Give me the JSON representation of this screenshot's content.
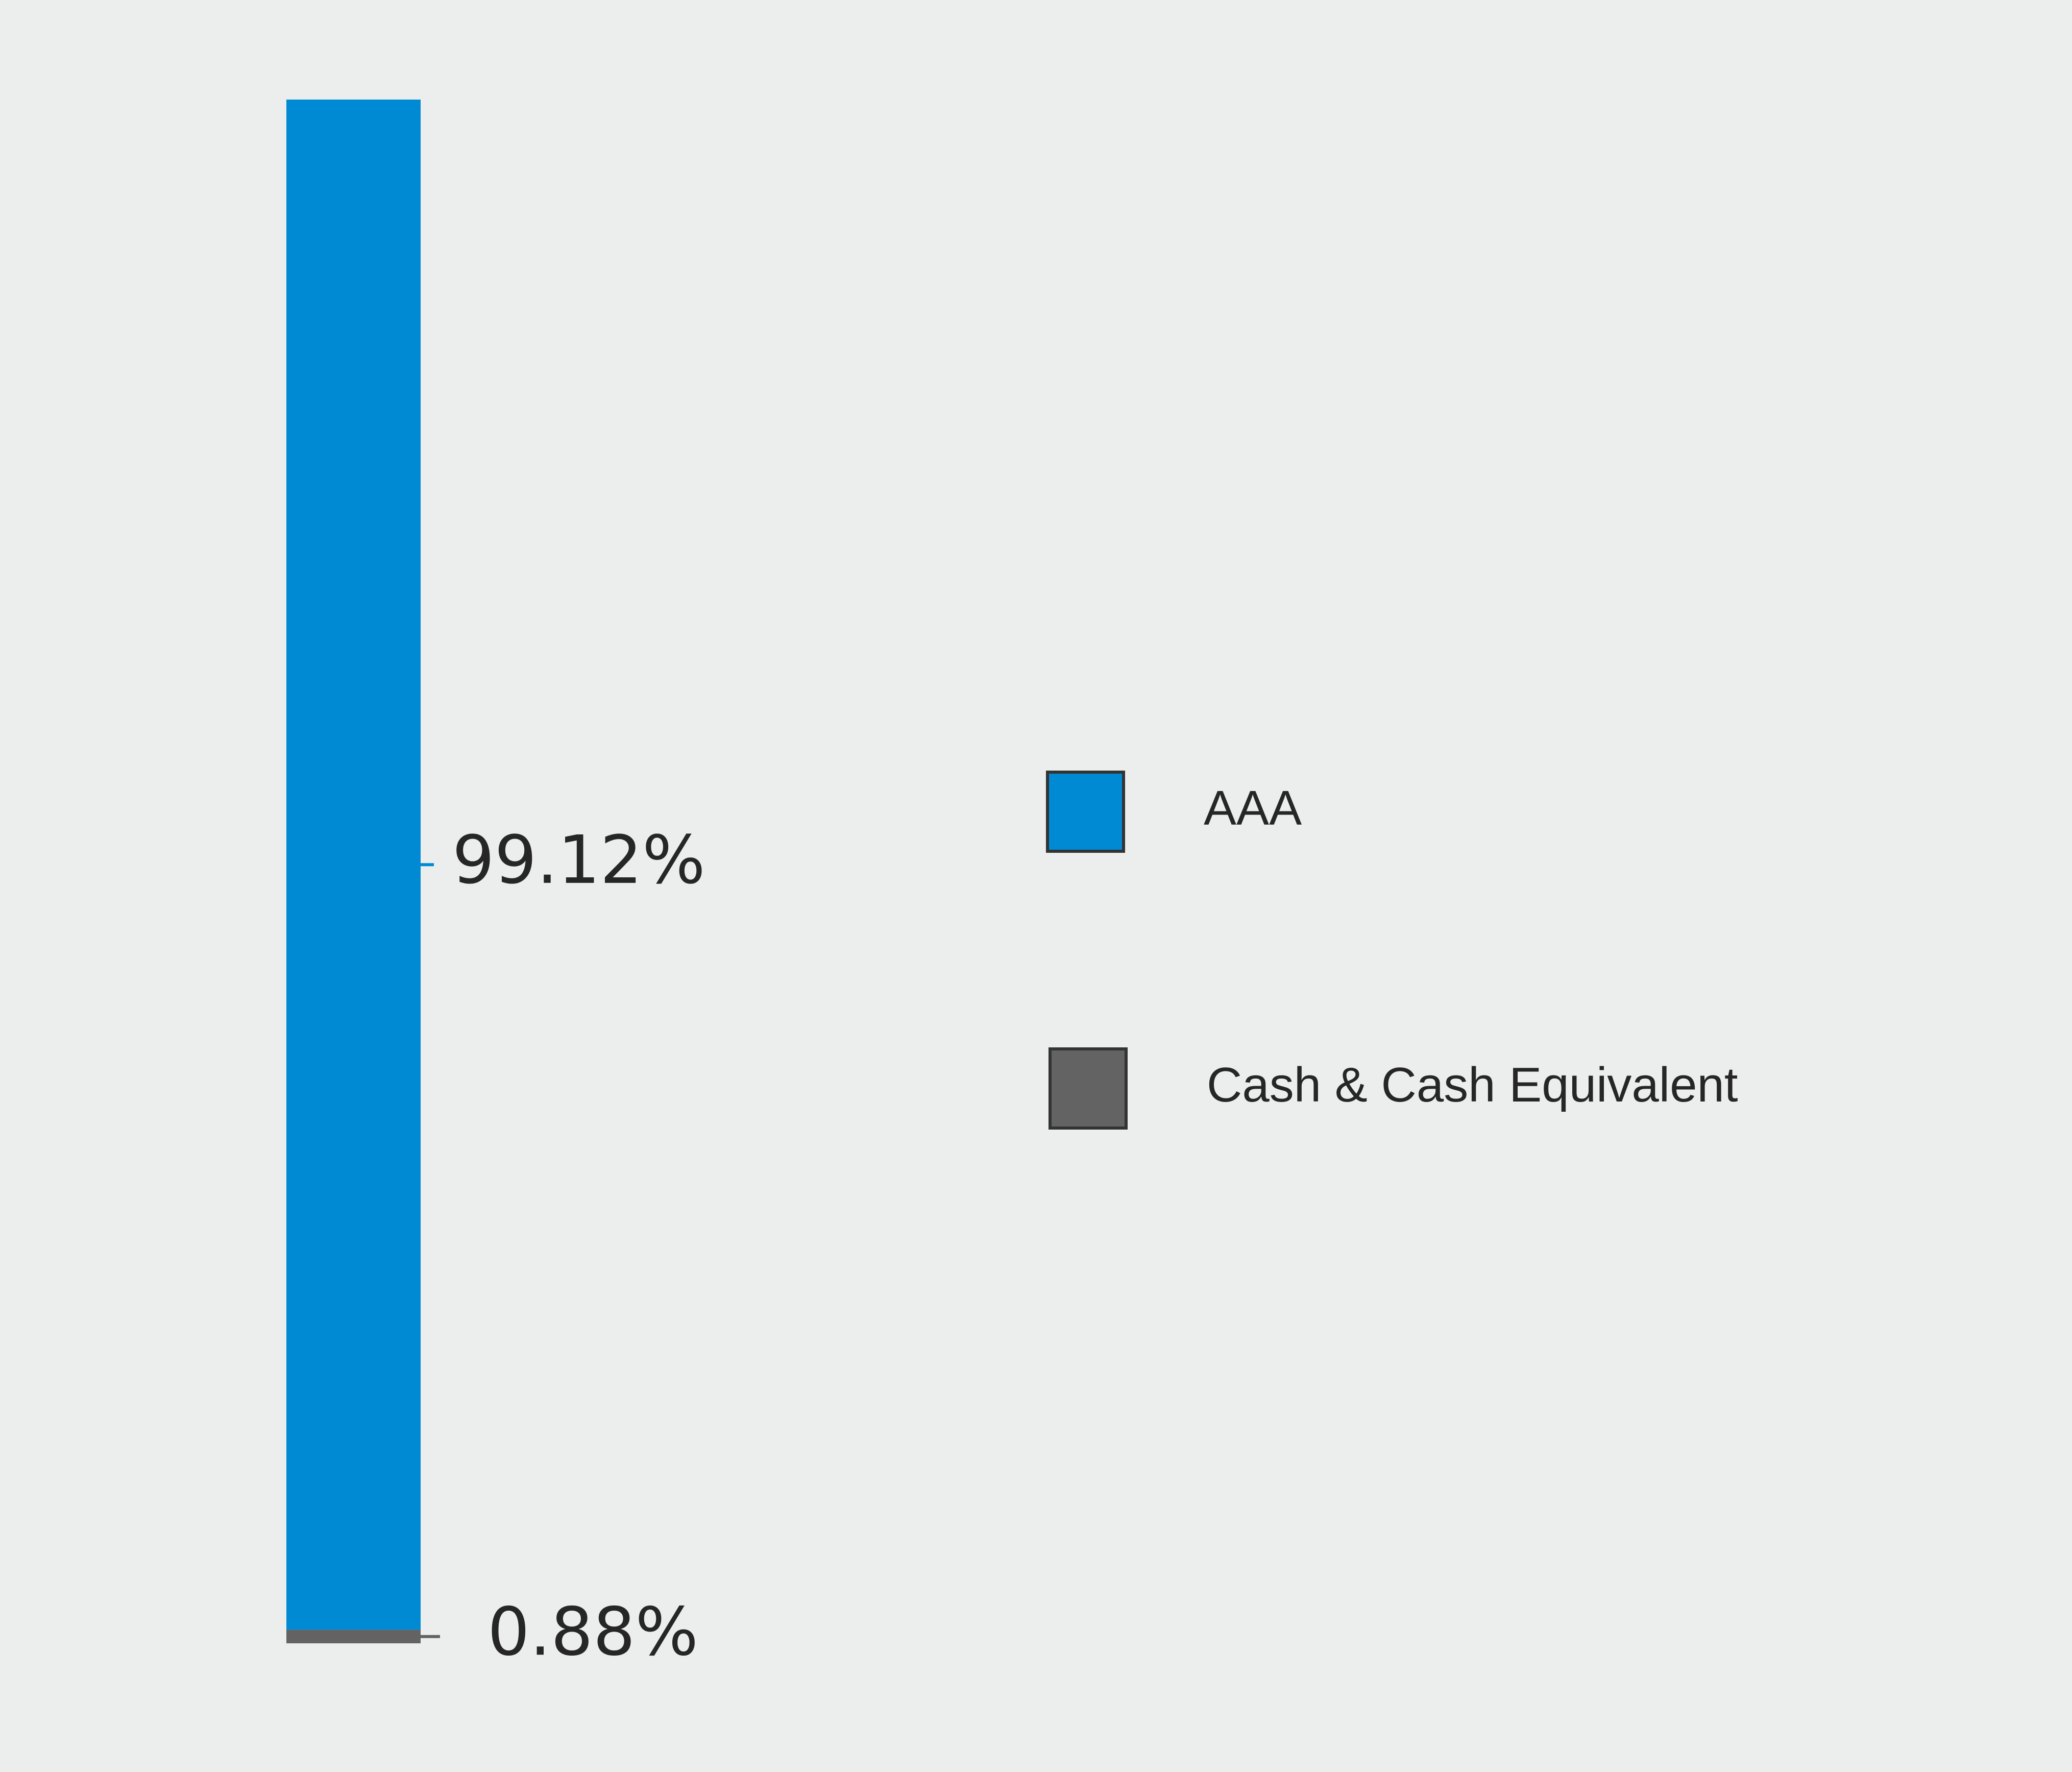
{
  "chart_data": {
    "type": "bar",
    "stacked": true,
    "orientation": "vertical",
    "categories": [
      ""
    ],
    "series": [
      {
        "name": "AAA",
        "values": [
          99.12
        ],
        "label": "99.12%",
        "color": "#008AD4"
      },
      {
        "name": "Cash & Cash Equivalent",
        "values": [
          0.88
        ],
        "label": "0.88%",
        "color": "#636363"
      }
    ],
    "ylim": [
      0,
      100
    ],
    "unit": "%",
    "grid": false,
    "legend_position": "right",
    "background_color": "#ECEDED",
    "title": "",
    "xlabel": "",
    "ylabel": ""
  }
}
